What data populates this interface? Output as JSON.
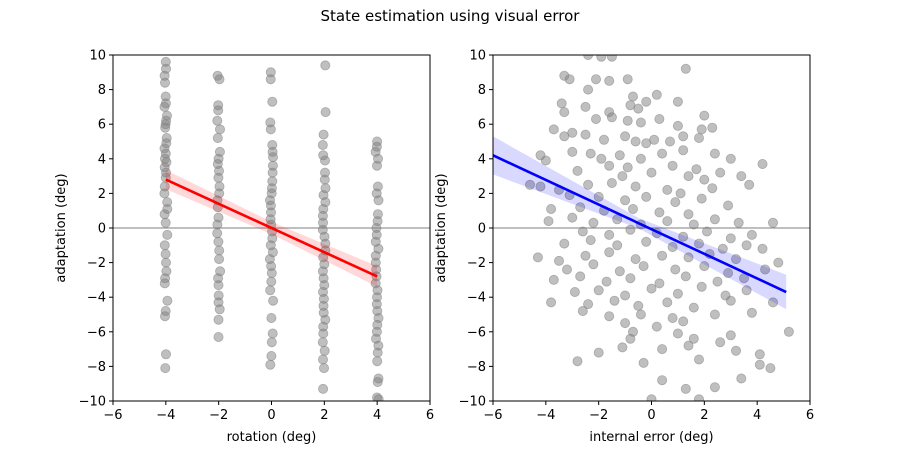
{
  "figure_title": "State estimation using visual error",
  "chart_data": [
    {
      "type": "scatter",
      "xlabel": "rotation (deg)",
      "ylabel": "adaptation (deg)",
      "xlim": [
        -6,
        6
      ],
      "ylim": [
        -10,
        10
      ],
      "xticks": [
        -6,
        -4,
        -2,
        0,
        2,
        4,
        6
      ],
      "yticks": [
        -10,
        -8,
        -6,
        -4,
        -2,
        0,
        2,
        4,
        6,
        8,
        10
      ],
      "grid": false,
      "zero_line": true,
      "point_color": "#808080",
      "fit_color": "#ff0000",
      "band_color": "#ff0000",
      "fit": {
        "x": [
          -4,
          4
        ],
        "y": [
          2.8,
          -2.8
        ],
        "band_halfwidth": [
          0.55,
          0.35,
          0.6
        ]
      },
      "points": {
        "x_levels": [
          -4,
          -2,
          0,
          2,
          4
        ],
        "y": [
          [
            9.6,
            9.2,
            8.8,
            8.4,
            7.6,
            7.2,
            7.0,
            6.5,
            6.2,
            6.0,
            5.8,
            5.2,
            4.9,
            4.6,
            4.3,
            4.0,
            3.8,
            3.5,
            3.2,
            2.9,
            2.4,
            2.0,
            1.5,
            1.1,
            0.8,
            0.3,
            -0.4,
            -1.0,
            -1.5,
            -2.0,
            -2.5,
            -2.9,
            -3.2,
            -4.2,
            -4.8,
            -5.1,
            -7.3,
            -8.1
          ],
          [
            8.8,
            8.6,
            7.1,
            6.8,
            6.2,
            5.7,
            5.2,
            4.4,
            4.0,
            3.7,
            3.3,
            2.9,
            2.4,
            2.0,
            1.6,
            1.2,
            0.6,
            0.2,
            -0.3,
            -0.8,
            -1.3,
            -1.8,
            -2.5,
            -2.9,
            -3.3,
            -3.9,
            -4.3,
            -4.7,
            -5.3,
            -6.3
          ],
          [
            9.0,
            8.6,
            7.3,
            6.1,
            5.7,
            4.8,
            4.4,
            4.1,
            3.6,
            3.2,
            2.7,
            2.3,
            2.0,
            1.6,
            1.3,
            0.9,
            0.5,
            0.2,
            -0.2,
            -0.6,
            -1.0,
            -1.4,
            -1.8,
            -2.2,
            -2.6,
            -3.1,
            -3.6,
            -4.2,
            -5.2,
            -6.1,
            -6.6,
            -7.4,
            -7.9
          ],
          [
            9.4,
            6.7,
            5.4,
            4.8,
            4.2,
            3.9,
            3.2,
            2.8,
            2.3,
            1.9,
            1.5,
            1.1,
            0.7,
            0.3,
            -0.1,
            -0.5,
            -0.9,
            -1.3,
            -1.7,
            -2.1,
            -2.5,
            -2.9,
            -3.3,
            -3.7,
            -4.1,
            -4.5,
            -4.9,
            -5.3,
            -5.7,
            -6.1,
            -6.6,
            -7.1,
            -7.6,
            -8.1,
            -9.3
          ],
          [
            5.0,
            4.7,
            4.4,
            4.0,
            3.6,
            2.4,
            2.0,
            1.6,
            0.8,
            0.4,
            0.0,
            -0.4,
            -0.8,
            -1.2,
            -1.6,
            -2.0,
            -2.4,
            -2.8,
            -3.2,
            -3.6,
            -4.0,
            -4.4,
            -4.8,
            -5.2,
            -5.6,
            -6.0,
            -6.4,
            -6.8,
            -7.2,
            -7.7,
            -8.7,
            -8.9,
            -9.8,
            -9.9
          ]
        ]
      }
    },
    {
      "type": "scatter",
      "xlabel": "internal error (deg)",
      "ylabel": "adaptation (deg)",
      "xlim": [
        -6,
        6
      ],
      "ylim": [
        -10,
        10
      ],
      "xticks": [
        -6,
        -4,
        -2,
        0,
        2,
        4,
        6
      ],
      "yticks": [
        -10,
        -8,
        -6,
        -4,
        -2,
        0,
        2,
        4,
        6,
        8,
        10
      ],
      "grid": false,
      "zero_line": true,
      "point_color": "#808080",
      "fit_color": "#0000ff",
      "band_color": "#0000ff",
      "fit": {
        "x": [
          -6,
          5.1
        ],
        "y": [
          4.2,
          -3.7
        ],
        "band_halfwidth": [
          1.1,
          0.3,
          1.0
        ]
      },
      "points": {
        "xy": [
          [
            -2.4,
            10.0
          ],
          [
            -1.9,
            9.9
          ],
          [
            -1.5,
            9.9
          ],
          [
            1.3,
            9.2
          ],
          [
            -3.3,
            8.8
          ],
          [
            -3.1,
            8.6
          ],
          [
            -2.1,
            8.6
          ],
          [
            -1.6,
            8.5
          ],
          [
            -0.9,
            8.6
          ],
          [
            -2.4,
            8.0
          ],
          [
            -0.7,
            7.6
          ],
          [
            -0.2,
            7.3
          ],
          [
            0.2,
            7.7
          ],
          [
            1.0,
            7.3
          ],
          [
            -3.4,
            7.2
          ],
          [
            -3.3,
            6.7
          ],
          [
            -2.5,
            7.0
          ],
          [
            -1.6,
            6.7
          ],
          [
            -0.8,
            7.1
          ],
          [
            -0.5,
            6.9
          ],
          [
            2.0,
            6.5
          ],
          [
            -2.1,
            6.3
          ],
          [
            -1.5,
            6.4
          ],
          [
            -0.9,
            6.2
          ],
          [
            -0.4,
            6.1
          ],
          [
            0.3,
            6.3
          ],
          [
            1.0,
            5.9
          ],
          [
            1.9,
            5.7
          ],
          [
            2.3,
            5.8
          ],
          [
            -3.7,
            5.7
          ],
          [
            -3.0,
            5.5
          ],
          [
            -2.5,
            5.4
          ],
          [
            -1.8,
            5.1
          ],
          [
            -1.0,
            5.3
          ],
          [
            -0.6,
            5.0
          ],
          [
            0.1,
            5.1
          ],
          [
            0.7,
            5.0
          ],
          [
            1.2,
            5.3
          ],
          [
            1.8,
            5.2
          ],
          [
            -3.3,
            5.3
          ],
          [
            -0.2,
            4.9
          ],
          [
            -4.2,
            4.2
          ],
          [
            -3.0,
            4.4
          ],
          [
            -2.3,
            4.3
          ],
          [
            -1.9,
            4.0
          ],
          [
            -1.2,
            4.2
          ],
          [
            -0.4,
            4.0
          ],
          [
            0.4,
            4.3
          ],
          [
            1.2,
            4.5
          ],
          [
            2.4,
            4.3
          ],
          [
            3.0,
            4.0
          ],
          [
            -4.0,
            3.9
          ],
          [
            -1.6,
            3.6
          ],
          [
            -0.9,
            3.5
          ],
          [
            0.8,
            3.6
          ],
          [
            1.7,
            3.4
          ],
          [
            2.6,
            3.2
          ],
          [
            3.4,
            3.0
          ],
          [
            4.2,
            3.7
          ],
          [
            -2.8,
            3.3
          ],
          [
            -1.1,
            3.0
          ],
          [
            0.0,
            3.2
          ],
          [
            1.4,
            3.0
          ],
          [
            2.0,
            2.8
          ],
          [
            -4.6,
            2.5
          ],
          [
            -4.2,
            2.4
          ],
          [
            -3.5,
            2.2
          ],
          [
            -2.4,
            2.5
          ],
          [
            -1.5,
            2.6
          ],
          [
            -0.6,
            2.4
          ],
          [
            0.6,
            2.2
          ],
          [
            1.1,
            2.0
          ],
          [
            2.3,
            2.3
          ],
          [
            3.7,
            2.5
          ],
          [
            -3.1,
            1.9
          ],
          [
            -2.0,
            1.8
          ],
          [
            -1.0,
            1.6
          ],
          [
            -0.2,
            1.8
          ],
          [
            0.9,
            1.5
          ],
          [
            1.9,
            1.7
          ],
          [
            2.9,
            1.3
          ],
          [
            -3.8,
            1.1
          ],
          [
            -2.7,
            1.2
          ],
          [
            -1.8,
            1.0
          ],
          [
            -0.7,
            1.1
          ],
          [
            0.3,
            0.9
          ],
          [
            1.4,
            0.8
          ],
          [
            -3.9,
            0.4
          ],
          [
            -3.0,
            0.6
          ],
          [
            -2.2,
            0.3
          ],
          [
            -1.3,
            0.5
          ],
          [
            -0.4,
            0.2
          ],
          [
            0.6,
            0.4
          ],
          [
            1.6,
            0.2
          ],
          [
            2.4,
            0.5
          ],
          [
            3.3,
            0.3
          ],
          [
            4.6,
            0.3
          ],
          [
            -2.6,
            -0.2
          ],
          [
            -1.6,
            -0.4
          ],
          [
            -0.8,
            -0.1
          ],
          [
            0.2,
            -0.3
          ],
          [
            1.2,
            -0.5
          ],
          [
            2.1,
            -0.2
          ],
          [
            3.0,
            -0.6
          ],
          [
            3.8,
            -0.4
          ],
          [
            -3.3,
            -0.9
          ],
          [
            -2.3,
            -0.7
          ],
          [
            -1.3,
            -1.0
          ],
          [
            -0.2,
            -0.8
          ],
          [
            0.8,
            -1.1
          ],
          [
            1.8,
            -0.9
          ],
          [
            2.7,
            -1.2
          ],
          [
            3.6,
            -1.0
          ],
          [
            -4.3,
            -1.7
          ],
          [
            -3.5,
            -1.9
          ],
          [
            -2.5,
            -1.6
          ],
          [
            -1.6,
            -1.4
          ],
          [
            -0.6,
            -1.8
          ],
          [
            0.4,
            -1.6
          ],
          [
            1.4,
            -1.7
          ],
          [
            2.2,
            -1.5
          ],
          [
            3.2,
            -1.8
          ],
          [
            4.2,
            -1.2
          ],
          [
            4.8,
            -2.0
          ],
          [
            -3.2,
            -2.4
          ],
          [
            -2.2,
            -2.1
          ],
          [
            -1.2,
            -2.5
          ],
          [
            -0.3,
            -2.2
          ],
          [
            0.9,
            -2.4
          ],
          [
            2.0,
            -2.2
          ],
          [
            2.9,
            -2.6
          ],
          [
            4.3,
            -2.4
          ],
          [
            -3.7,
            -3.0
          ],
          [
            -2.7,
            -2.8
          ],
          [
            -1.7,
            -3.1
          ],
          [
            -0.8,
            -2.9
          ],
          [
            0.3,
            -3.2
          ],
          [
            1.3,
            -2.8
          ],
          [
            2.5,
            -3.1
          ],
          [
            3.5,
            -2.9
          ],
          [
            -3.8,
            -4.3
          ],
          [
            -2.9,
            -3.7
          ],
          [
            -2.0,
            -3.6
          ],
          [
            -1.0,
            -3.9
          ],
          [
            0.0,
            -3.5
          ],
          [
            1.0,
            -3.8
          ],
          [
            1.9,
            -3.4
          ],
          [
            2.8,
            -3.9
          ],
          [
            3.6,
            -3.6
          ],
          [
            4.6,
            -4.3
          ],
          [
            -2.4,
            -4.4
          ],
          [
            -1.4,
            -4.2
          ],
          [
            -0.5,
            -4.5
          ],
          [
            0.6,
            -4.3
          ],
          [
            1.6,
            -4.6
          ],
          [
            3.0,
            -4.2
          ],
          [
            -2.6,
            -4.8
          ],
          [
            -1.6,
            -5.1
          ],
          [
            -0.4,
            -5.0
          ],
          [
            0.8,
            -5.2
          ],
          [
            2.4,
            -5.0
          ],
          [
            3.8,
            -4.9
          ],
          [
            -1.0,
            -5.5
          ],
          [
            0.2,
            -5.7
          ],
          [
            1.2,
            -5.4
          ],
          [
            -0.7,
            -6.0
          ],
          [
            1.0,
            -6.1
          ],
          [
            1.6,
            -6.4
          ],
          [
            3.0,
            -6.2
          ],
          [
            5.2,
            -6.0
          ],
          [
            -0.8,
            -6.4
          ],
          [
            2.6,
            -6.6
          ],
          [
            -2.0,
            -7.2
          ],
          [
            -1.1,
            -6.9
          ],
          [
            0.4,
            -7.0
          ],
          [
            1.4,
            -6.8
          ],
          [
            3.2,
            -7.1
          ],
          [
            4.1,
            -7.3
          ],
          [
            -2.8,
            -7.7
          ],
          [
            -0.3,
            -7.8
          ],
          [
            1.8,
            -7.6
          ],
          [
            4.1,
            -7.9
          ],
          [
            4.5,
            -8.1
          ],
          [
            0.4,
            -8.8
          ],
          [
            3.4,
            -8.7
          ],
          [
            1.3,
            -9.3
          ],
          [
            2.4,
            -9.2
          ],
          [
            0.0,
            -9.9
          ],
          [
            1.8,
            -9.9
          ]
        ]
      }
    }
  ]
}
